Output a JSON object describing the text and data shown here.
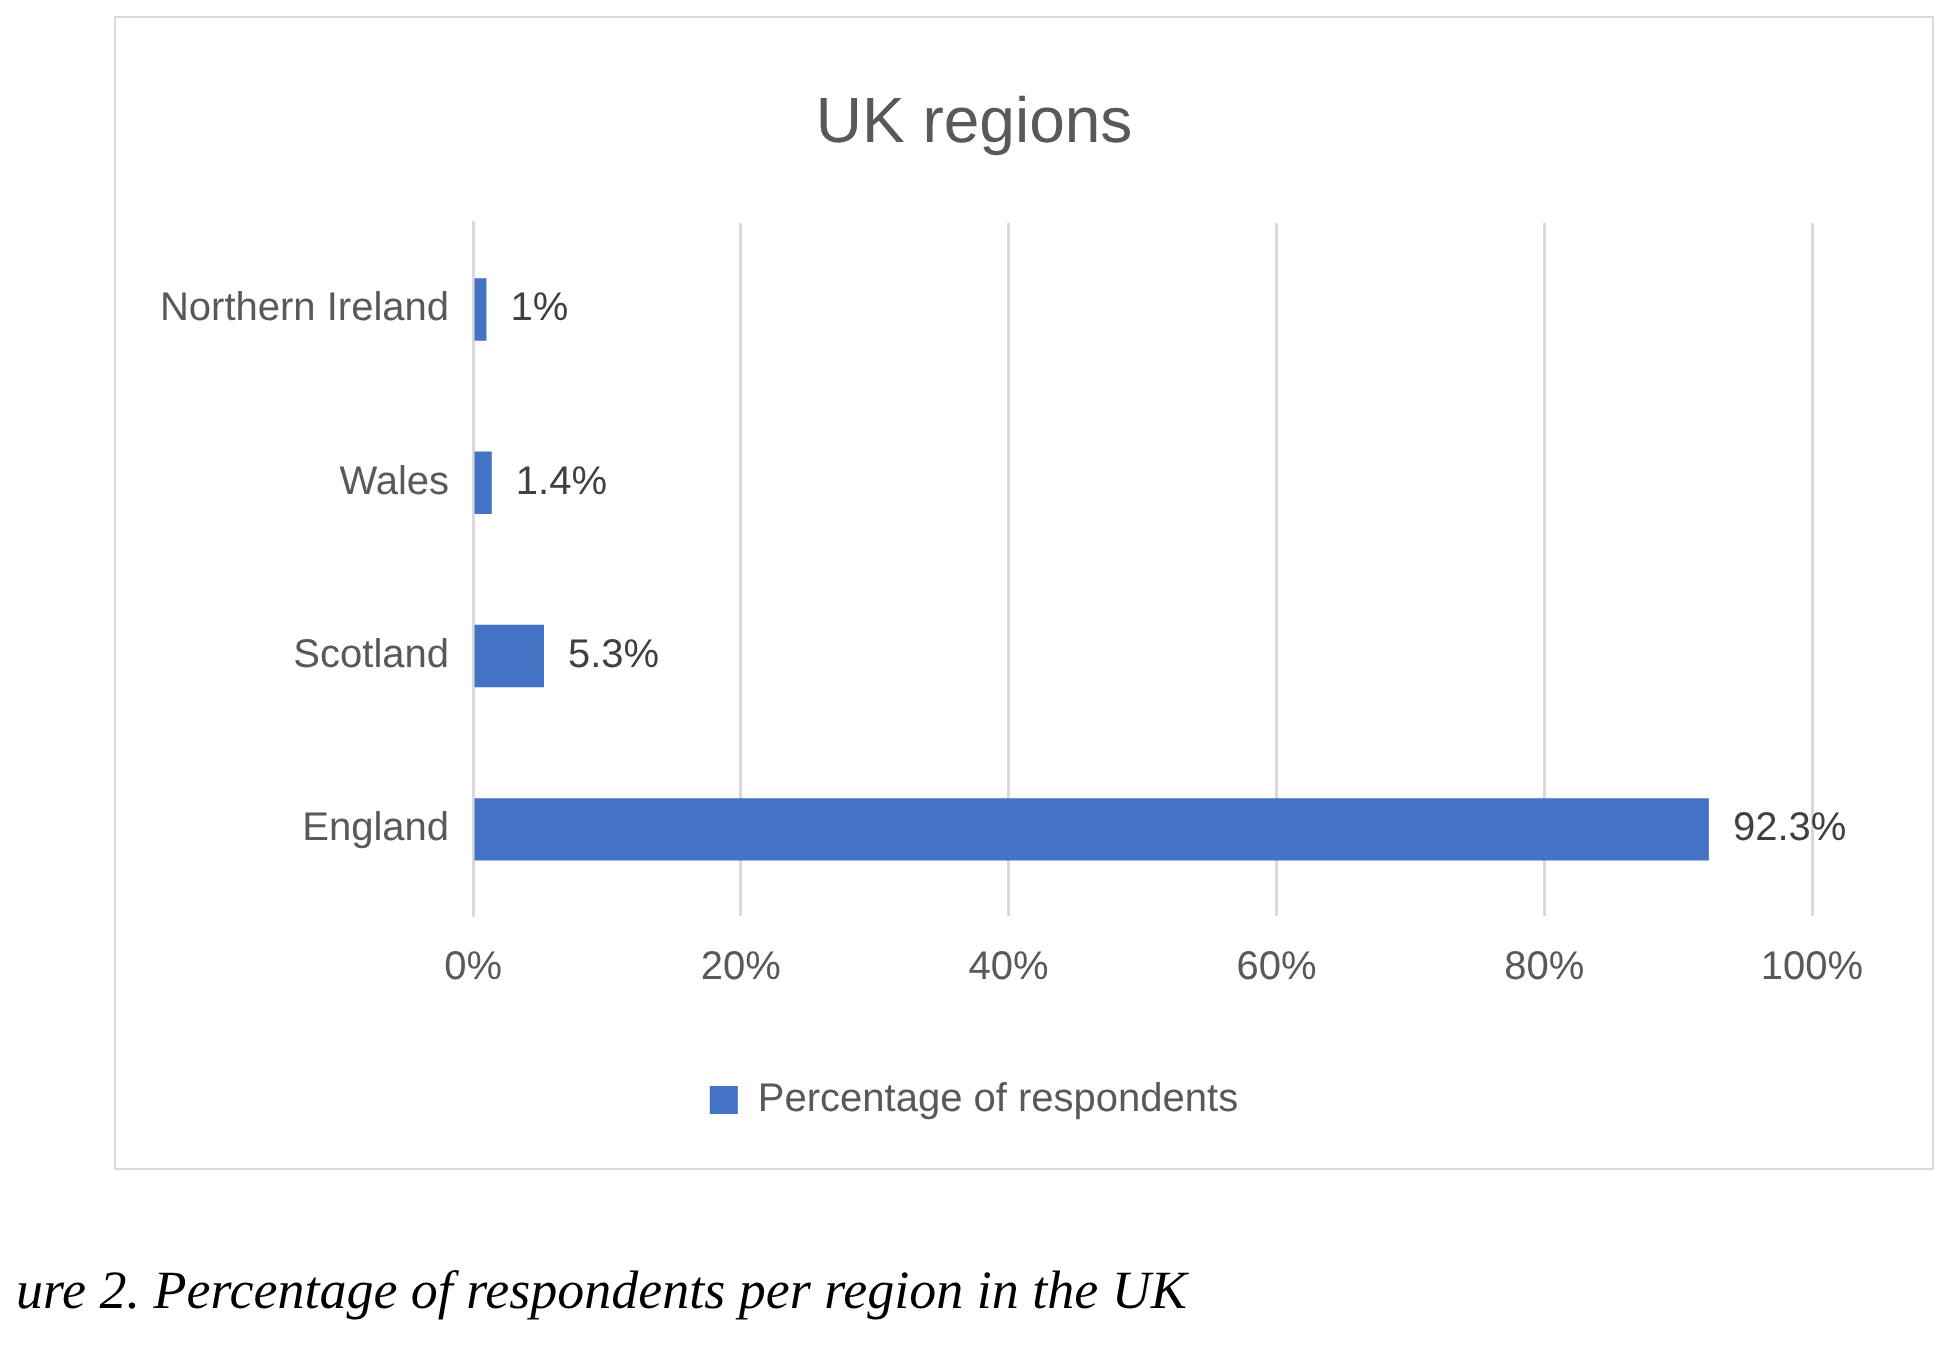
{
  "chart_data": {
    "type": "bar",
    "orientation": "horizontal",
    "title": "UK regions",
    "categories": [
      "Northern Ireland",
      "Wales",
      "Scotland",
      "England"
    ],
    "series": [
      {
        "name": "Percentage of respondents",
        "color": "#4472c4",
        "values": [
          1,
          1.4,
          5.3,
          92.3
        ],
        "value_labels": [
          "1%",
          "1.4%",
          "5.3%",
          "92.3%"
        ]
      }
    ],
    "xlim": [
      0,
      100
    ],
    "xticks": [
      {
        "value": 0,
        "label": "0%"
      },
      {
        "value": 20,
        "label": "20%"
      },
      {
        "value": 40,
        "label": "40%"
      },
      {
        "value": 60,
        "label": "60%"
      },
      {
        "value": 80,
        "label": "80%"
      },
      {
        "value": 100,
        "label": "100%"
      }
    ],
    "grid": "x",
    "legend": "bottom",
    "annotations": [
      "ure 2. Percentage of respondents per region in the UK"
    ]
  }
}
